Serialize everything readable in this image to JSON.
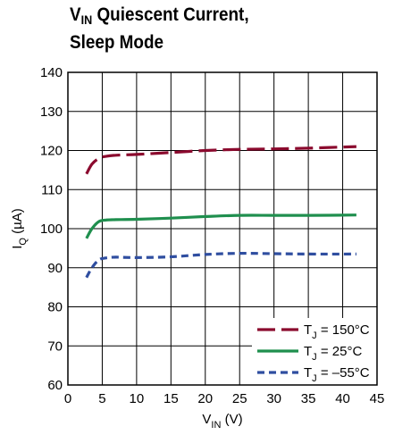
{
  "title": {
    "line1_main": "V",
    "line1_sub": "IN",
    "line1_rest": " Quiescent Current,",
    "line2": "Sleep Mode"
  },
  "chart_data": {
    "type": "line",
    "title": "VIN Quiescent Current, Sleep Mode",
    "xlabel": {
      "main": "V",
      "sub": "IN",
      "rest": " (V)"
    },
    "ylabel": {
      "main": "I",
      "sub": "Q",
      "rest": " (µA)"
    },
    "xlim": [
      0,
      45
    ],
    "ylim": [
      60,
      140
    ],
    "xticks": [
      0,
      5,
      10,
      15,
      20,
      25,
      30,
      35,
      40,
      45
    ],
    "yticks": [
      60,
      70,
      80,
      90,
      100,
      110,
      120,
      130,
      140
    ],
    "grid": true,
    "legend_position": "bottom-right",
    "series": [
      {
        "name": {
          "pre": "T",
          "sub": "J",
          "rest": " = 150°C"
        },
        "color": "#8b0a2e",
        "dash": "long-dash",
        "x": [
          2.7,
          3.5,
          4.5,
          5.5,
          7,
          10,
          15,
          20,
          25,
          30,
          35,
          42
        ],
        "y": [
          114,
          116.5,
          118,
          118.5,
          118.8,
          119,
          119.5,
          120,
          120.3,
          120.4,
          120.6,
          121
        ]
      },
      {
        "name": {
          "pre": "T",
          "sub": "J",
          "rest": " = 25°C"
        },
        "color": "#1f8f4e",
        "dash": "solid",
        "x": [
          2.7,
          3.5,
          4.5,
          5.5,
          7,
          10,
          15,
          20,
          25,
          30,
          35,
          42
        ],
        "y": [
          97.5,
          100,
          101.8,
          102.2,
          102.3,
          102.4,
          102.7,
          103.1,
          103.4,
          103.4,
          103.4,
          103.5
        ]
      },
      {
        "name": {
          "pre": "T",
          "sub": "J",
          "rest": " = –55°C"
        },
        "color": "#2f4ea0",
        "dash": "short-dash",
        "x": [
          2.7,
          3.5,
          4.5,
          5.5,
          7,
          10,
          15,
          20,
          25,
          30,
          35,
          42
        ],
        "y": [
          87.5,
          90,
          92,
          92.5,
          92.7,
          92.6,
          92.8,
          93.4,
          93.7,
          93.6,
          93.5,
          93.5
        ]
      }
    ]
  }
}
